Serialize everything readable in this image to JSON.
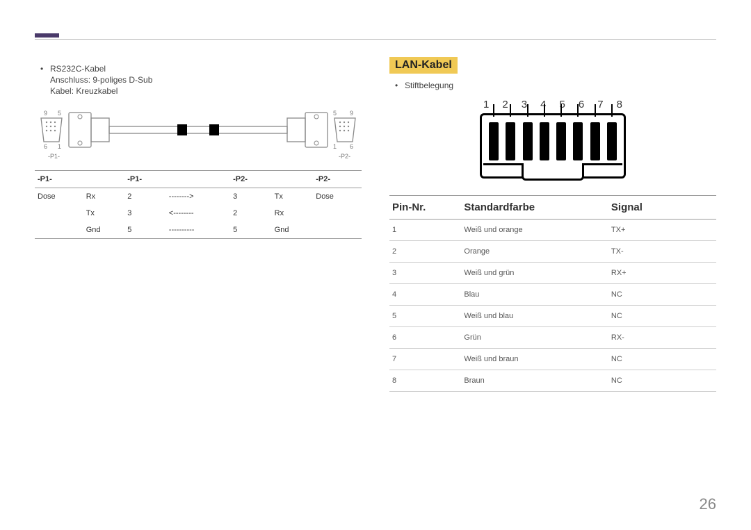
{
  "page_number": "26",
  "rs232": {
    "title": "RS232C-Kabel",
    "connector": "Anschluss: 9-poliges D-Sub",
    "cable_type": "Kabel: Kreuzkabel",
    "connector_left_top": "9",
    "connector_left_top2": "5",
    "connector_left_bot": "6",
    "connector_left_bot2": "1",
    "connector_right_top": "5",
    "connector_right_top2": "9",
    "connector_right_bot": "1",
    "connector_right_bot2": "6",
    "p1_label": "-P1-",
    "p2_label": "-P2-",
    "table": {
      "headers": [
        "-P1-",
        "",
        "-P1-",
        "",
        "-P2-",
        "",
        "-P2-"
      ],
      "rows": [
        [
          "Dose",
          "Rx",
          "2",
          "-------->",
          "3",
          "Tx",
          "Dose"
        ],
        [
          "",
          "Tx",
          "3",
          "<--------",
          "2",
          "Rx",
          ""
        ],
        [
          "",
          "Gnd",
          "5",
          "----------",
          "5",
          "Gnd",
          ""
        ]
      ]
    }
  },
  "lan": {
    "title": "LAN-Kabel",
    "bullet": "Stiftbelegung",
    "pin_numbers": [
      "1",
      "2",
      "3",
      "4",
      "5",
      "6",
      "7",
      "8"
    ],
    "table": {
      "headers": [
        "Pin-Nr.",
        "Standardfarbe",
        "Signal"
      ],
      "rows": [
        [
          "1",
          "Weiß und orange",
          "TX+"
        ],
        [
          "2",
          "Orange",
          "TX-"
        ],
        [
          "3",
          "Weiß und grün",
          "RX+"
        ],
        [
          "4",
          "Blau",
          "NC"
        ],
        [
          "5",
          "Weiß und blau",
          "NC"
        ],
        [
          "6",
          "Grün",
          "RX-"
        ],
        [
          "7",
          "Weiß und braun",
          "NC"
        ],
        [
          "8",
          "Braun",
          "NC"
        ]
      ]
    }
  },
  "colors": {
    "accent_bar": "#4a3a6a",
    "highlight": "#f0c955",
    "rule": "#bbbbbb",
    "text": "#333333"
  }
}
